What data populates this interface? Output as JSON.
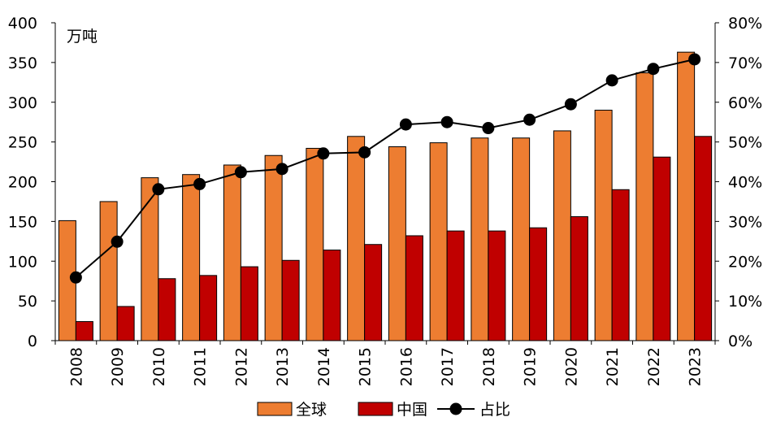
{
  "chart_data": {
    "type": "bar",
    "unit_label": "万吨",
    "categories": [
      "2008",
      "2009",
      "2010",
      "2011",
      "2012",
      "2013",
      "2014",
      "2015",
      "2016",
      "2017",
      "2018",
      "2019",
      "2020",
      "2021",
      "2022",
      "2023"
    ],
    "series": [
      {
        "name": "全球",
        "type": "bar",
        "axis": "left",
        "color": "#ED7D31",
        "values": [
          151,
          175,
          205,
          209,
          221,
          233,
          242,
          257,
          244,
          249,
          255,
          255,
          264,
          290,
          337,
          363
        ]
      },
      {
        "name": "中国",
        "type": "bar",
        "axis": "left",
        "color": "#C00000",
        "values": [
          24,
          43,
          78,
          82,
          93,
          101,
          114,
          121,
          132,
          138,
          138,
          142,
          156,
          190,
          231,
          257
        ]
      },
      {
        "name": "占比",
        "type": "line",
        "axis": "right",
        "color": "#000000",
        "values": [
          15.9,
          24.9,
          38.1,
          39.4,
          42.4,
          43.2,
          47.1,
          47.4,
          54.4,
          55.0,
          53.5,
          55.6,
          59.5,
          65.5,
          68.4,
          70.8
        ]
      }
    ],
    "y_left": {
      "min": 0,
      "max": 400,
      "ticks": [
        "0",
        "50",
        "100",
        "150",
        "200",
        "250",
        "300",
        "350",
        "400"
      ]
    },
    "y_right": {
      "min": 0,
      "max": 80,
      "ticks": [
        "0%",
        "10%",
        "20%",
        "30%",
        "40%",
        "50%",
        "60%",
        "70%",
        "80%"
      ]
    },
    "grid": false,
    "legend_position": "bottom"
  }
}
